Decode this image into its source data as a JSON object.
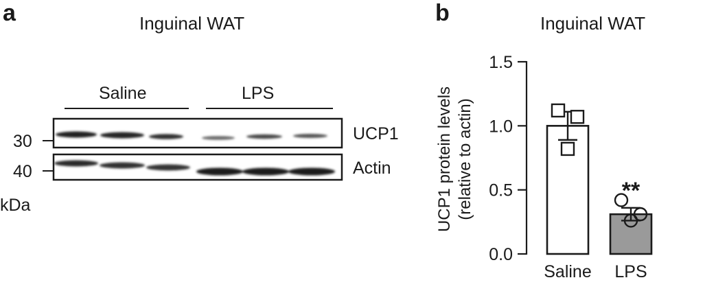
{
  "panel_a": {
    "letter": "a",
    "title": "Inguinal WAT",
    "group_labels": [
      "Saline",
      "LPS"
    ],
    "blot_labels": [
      "UCP1",
      "Actin"
    ],
    "mw_markers": [
      "30",
      "40"
    ],
    "mw_unit": "kDa",
    "lanes_per_group": 3
  },
  "panel_b": {
    "letter": "b",
    "title": "Inguinal WAT"
  },
  "chart_data": {
    "type": "bar",
    "title": "Inguinal WAT",
    "categories": [
      "Saline",
      "LPS"
    ],
    "values": [
      1.0,
      0.31
    ],
    "errors": [
      0.11,
      0.05
    ],
    "points": [
      [
        1.12,
        1.07,
        0.82
      ],
      [
        0.42,
        0.31,
        0.26
      ]
    ],
    "point_markers": [
      "square",
      "circle"
    ],
    "bar_colors": [
      "#ffffff",
      "#9a9a9a"
    ],
    "significance": [
      "",
      "**"
    ],
    "ylabel": "UCP1 protein levels",
    "ylabel_sub": "(relative to actin)",
    "ylim": [
      0,
      1.5
    ],
    "yticks": [
      0.0,
      0.5,
      1.0,
      1.5
    ],
    "ytick_labels": [
      "0.0",
      "0.5",
      "1.0",
      "1.5"
    ],
    "grid": false
  }
}
